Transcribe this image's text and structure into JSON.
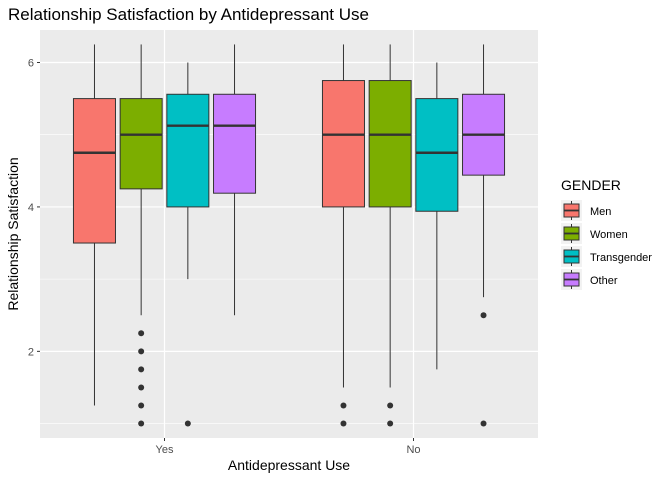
{
  "chart_data": {
    "type": "boxplot",
    "title": "Relationship Satisfaction by Antidepressant Use",
    "xlabel": "Antidepressant Use",
    "ylabel": "Relationship Satisfaction",
    "categories": [
      "Yes",
      "No"
    ],
    "ylim": [
      0.8,
      6.45
    ],
    "yticks": [
      2,
      4,
      6
    ],
    "grid": true,
    "legend": {
      "title": "GENDER",
      "position": "right",
      "entries": [
        "Men",
        "Women",
        "Transgender",
        "Other"
      ]
    },
    "colors": {
      "Men": "#f8766d",
      "Women": "#7cae00",
      "Transgender": "#00bfc4",
      "Other": "#c77cff",
      "panel": "#ebebeb",
      "grid": "#ffffff"
    },
    "series": [
      {
        "name": "Men",
        "boxes": [
          {
            "category": "Yes",
            "min": 1.25,
            "q1": 3.5,
            "median": 4.75,
            "q3": 5.5,
            "max": 6.25,
            "outliers": []
          },
          {
            "category": "No",
            "min": 1.5,
            "q1": 4.0,
            "median": 5.0,
            "q3": 5.75,
            "max": 6.25,
            "outliers": [
              1.0,
              1.25
            ]
          }
        ]
      },
      {
        "name": "Women",
        "boxes": [
          {
            "category": "Yes",
            "min": 2.5,
            "q1": 4.25,
            "median": 5.0,
            "q3": 5.5,
            "max": 6.25,
            "outliers": [
              1.0,
              1.25,
              1.5,
              1.75,
              2.0,
              2.25
            ]
          },
          {
            "category": "No",
            "min": 1.5,
            "q1": 4.0,
            "median": 5.0,
            "q3": 5.75,
            "max": 6.25,
            "outliers": [
              1.0,
              1.25
            ]
          }
        ]
      },
      {
        "name": "Transgender",
        "boxes": [
          {
            "category": "Yes",
            "min": 3.0,
            "q1": 4.0,
            "median": 5.125,
            "q3": 5.56,
            "max": 6.0,
            "outliers": [
              1.0
            ]
          },
          {
            "category": "No",
            "min": 1.75,
            "q1": 3.94,
            "median": 4.75,
            "q3": 5.5,
            "max": 6.0,
            "outliers": []
          }
        ]
      },
      {
        "name": "Other",
        "boxes": [
          {
            "category": "Yes",
            "min": 2.5,
            "q1": 4.19,
            "median": 5.125,
            "q3": 5.56,
            "max": 6.25,
            "outliers": []
          },
          {
            "category": "No",
            "min": 2.75,
            "q1": 4.44,
            "median": 5.0,
            "q3": 5.56,
            "max": 6.25,
            "outliers": [
              1.0,
              2.5
            ]
          }
        ]
      }
    ]
  }
}
